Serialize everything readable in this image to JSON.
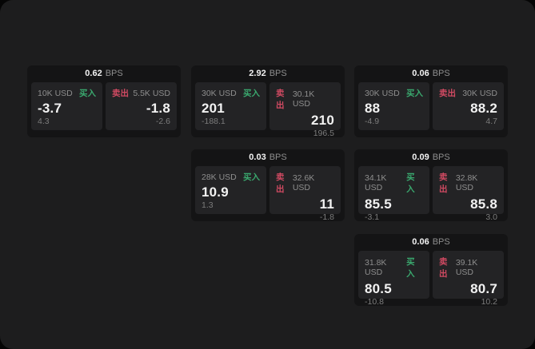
{
  "labels": {
    "bps_unit": "BPS",
    "buy": "买入",
    "sell": "卖出"
  },
  "colors": {
    "page_bg": "#1d1d1e",
    "card_bg": "#141415",
    "panel_bg": "#232325",
    "text_primary": "#f2f2f2",
    "text_secondary": "#8e8e8e",
    "text_muted": "#7c7c7c",
    "buy_green": "#3aa86e",
    "sell_red": "#d04a62"
  },
  "cards": [
    {
      "grid": {
        "col": 1,
        "row": 1
      },
      "spread": "0.62",
      "buy": {
        "amount": "10K USD",
        "value": "-3.7",
        "sub": "4.3"
      },
      "sell": {
        "amount": "5.5K USD",
        "value": "-1.8",
        "sub": "-2.6"
      }
    },
    {
      "grid": {
        "col": 2,
        "row": 1
      },
      "spread": "2.92",
      "buy": {
        "amount": "30K USD",
        "value": "201",
        "sub": "-188.1"
      },
      "sell": {
        "amount": "30.1K USD",
        "value": "210",
        "sub": "196.5"
      }
    },
    {
      "grid": {
        "col": 3,
        "row": 1
      },
      "spread": "0.06",
      "buy": {
        "amount": "30K USD",
        "value": "88",
        "sub": "-4.9"
      },
      "sell": {
        "amount": "30K USD",
        "value": "88.2",
        "sub": "4.7"
      }
    },
    {
      "grid": {
        "col": 2,
        "row": 2
      },
      "spread": "0.03",
      "buy": {
        "amount": "28K USD",
        "value": "10.9",
        "sub": "1.3"
      },
      "sell": {
        "amount": "32.6K USD",
        "value": "11",
        "sub": "-1.8"
      }
    },
    {
      "grid": {
        "col": 3,
        "row": 2
      },
      "spread": "0.09",
      "buy": {
        "amount": "34.1K USD",
        "value": "85.5",
        "sub": "-3.1"
      },
      "sell": {
        "amount": "32.8K USD",
        "value": "85.8",
        "sub": "3.0"
      }
    },
    {
      "grid": {
        "col": 3,
        "row": 3
      },
      "spread": "0.06",
      "buy": {
        "amount": "31.8K USD",
        "value": "80.5",
        "sub": "-10.8"
      },
      "sell": {
        "amount": "39.1K USD",
        "value": "80.7",
        "sub": "10.2"
      }
    }
  ]
}
